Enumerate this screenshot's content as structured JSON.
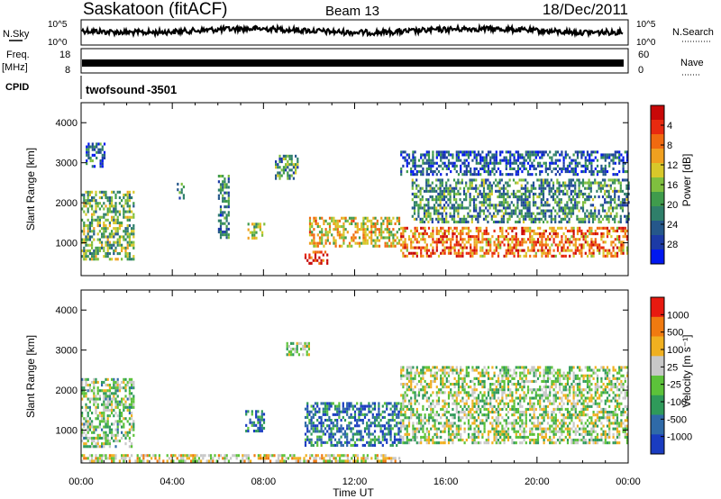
{
  "header": {
    "station": "Saskatoon (fitACF)",
    "beam": "Beam 13",
    "date": "18/Dec/2011"
  },
  "noise_panel": {
    "left_label": "N.Sky",
    "right_label": "N.Search",
    "left_ticks": [
      "10^5",
      "10^0"
    ],
    "right_ticks": [
      "10^5",
      "10^0"
    ]
  },
  "freq_panel": {
    "left_label_1": "Freq.",
    "left_label_2": "[MHz]",
    "right_label": "Nave",
    "left_ticks": [
      "18",
      "8"
    ],
    "right_ticks": [
      "60",
      "0"
    ],
    "approx_frequency_mhz": 11
  },
  "cpid_panel": {
    "label": "CPID",
    "program": "twofsound",
    "id": "-3501"
  },
  "chart_data": [
    {
      "type": "heatmap",
      "parameter": "Power",
      "ylabel": "Slant Range [km]",
      "yticks": [
        "1000",
        "2000",
        "3000",
        "4000"
      ],
      "ylim": [
        180,
        4500
      ],
      "xlim": [
        0,
        24
      ],
      "colorbar": {
        "label": "Power [dB]",
        "ticks": [
          "4",
          "8",
          "12",
          "16",
          "20",
          "24",
          "28"
        ],
        "colors": [
          "#0018f0",
          "#1c3aa6",
          "#25578a",
          "#2f7f6a",
          "#3f9b4c",
          "#7fbf3f",
          "#d8c82a",
          "#f0a020",
          "#f06a10",
          "#e82a10",
          "#c80808"
        ]
      },
      "regions": [
        {
          "t": [
            0.0,
            2.3
          ],
          "r": [
            600,
            2300
          ],
          "level": 0.45
        },
        {
          "t": [
            0.2,
            1.0
          ],
          "r": [
            2900,
            3500
          ],
          "level": 0.25
        },
        {
          "t": [
            4.2,
            4.5
          ],
          "r": [
            2100,
            2500
          ],
          "level": 0.3
        },
        {
          "t": [
            6.0,
            6.5
          ],
          "r": [
            1100,
            2700
          ],
          "level": 0.3
        },
        {
          "t": [
            7.3,
            8.0
          ],
          "r": [
            1100,
            1500
          ],
          "level": 0.5
        },
        {
          "t": [
            8.5,
            9.5
          ],
          "r": [
            2600,
            3200
          ],
          "level": 0.35
        },
        {
          "t": [
            9.8,
            10.8
          ],
          "r": [
            500,
            800
          ],
          "level": 0.9
        },
        {
          "t": [
            10.0,
            14.0
          ],
          "r": [
            900,
            1650
          ],
          "level": 0.6
        },
        {
          "t": [
            14.0,
            24.0
          ],
          "r": [
            700,
            1400
          ],
          "level": 0.75
        },
        {
          "t": [
            14.5,
            24.0
          ],
          "r": [
            1500,
            2600
          ],
          "level": 0.35
        },
        {
          "t": [
            14.0,
            24.0
          ],
          "r": [
            2700,
            3300
          ],
          "level": 0.2
        }
      ]
    },
    {
      "type": "heatmap",
      "parameter": "Velocity",
      "ylabel": "Slant Range [km]",
      "yticks": [
        "1000",
        "2000",
        "3000",
        "4000"
      ],
      "ylim": [
        180,
        4500
      ],
      "xlim": [
        0,
        24
      ],
      "colorbar": {
        "label": "Velocity [m s⁻¹]",
        "ticks": [
          "1000",
          "500",
          "100",
          "25",
          "-25",
          "-100",
          "-500",
          "-1000"
        ],
        "colors": [
          "#1a3cc0",
          "#2f6aa8",
          "#2f9a5a",
          "#5cc23a",
          "#c8c8c8",
          "#f0b020",
          "#f07a10",
          "#e81a10"
        ]
      },
      "regions": [
        {
          "t": [
            0.0,
            2.3
          ],
          "r": [
            600,
            2300
          ],
          "level": 0.45
        },
        {
          "t": [
            7.2,
            8.0
          ],
          "r": [
            1000,
            1500
          ],
          "level": 0.2
        },
        {
          "t": [
            9.8,
            14.0
          ],
          "r": [
            650,
            1700
          ],
          "level": 0.2
        },
        {
          "t": [
            9.0,
            10.0
          ],
          "r": [
            2900,
            3200
          ],
          "level": 0.5
        },
        {
          "t": [
            14.0,
            24.0
          ],
          "r": [
            700,
            2600
          ],
          "level": 0.5
        },
        {
          "t": [
            0.0,
            14.0
          ],
          "r": [
            200,
            400
          ],
          "level": 0.62
        }
      ],
      "xticks": [
        "00:00",
        "04:00",
        "08:00",
        "12:00",
        "16:00",
        "20:00",
        "00:00"
      ],
      "xlabel": "Time UT"
    }
  ]
}
